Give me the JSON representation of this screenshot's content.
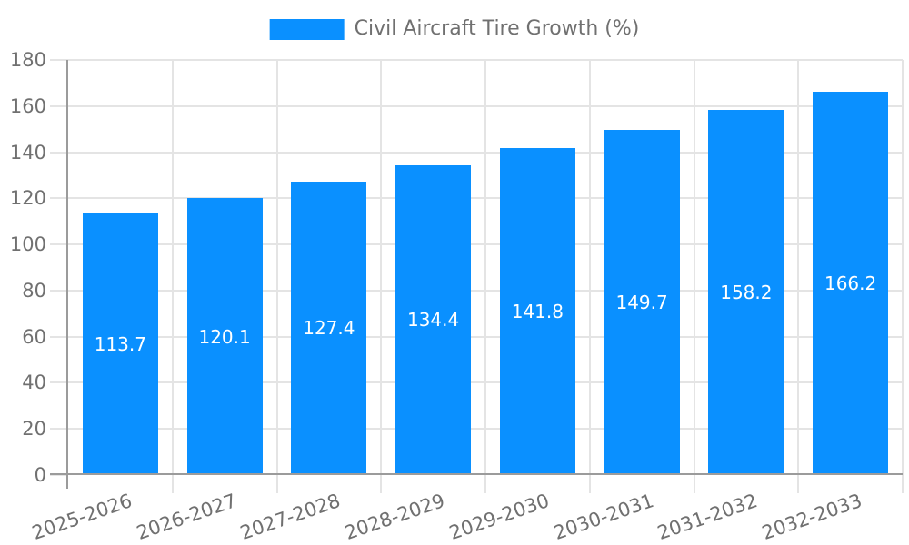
{
  "chart_data": {
    "type": "bar",
    "title": "Civil Aircraft Tire Growth (%)",
    "legend": [
      "Civil Aircraft Tire Growth (%)"
    ],
    "legend_position": "top-center",
    "categories": [
      "2025-2026",
      "2026-2027",
      "2027-2028",
      "2028-2029",
      "2029-2030",
      "2030-2031",
      "2031-2032",
      "2032-2033"
    ],
    "values": [
      113.7,
      120.1,
      127.4,
      134.4,
      141.8,
      149.7,
      158.2,
      166.2
    ],
    "value_labels": [
      "113.7",
      "120.1",
      "127.4",
      "134.4",
      "141.8",
      "149.7",
      "158.2",
      "166.2"
    ],
    "xlabel": "",
    "ylabel": "",
    "ylim": [
      0,
      180
    ],
    "yticks": [
      0,
      20,
      40,
      60,
      80,
      100,
      120,
      140,
      160,
      180
    ],
    "grid": true,
    "x_tick_rotation_deg": -19,
    "bar_label_position": "center",
    "colors": {
      "bar": "#0a90ff",
      "bar_label": "#ffffff",
      "grid": "#e4e4e4",
      "axis": "#9b9b9b",
      "text": "#707070",
      "background": "#ffffff"
    }
  }
}
